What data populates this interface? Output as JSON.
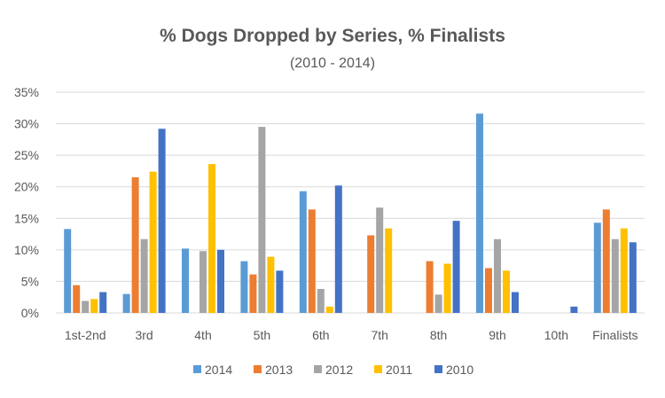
{
  "chart_data": {
    "type": "bar",
    "title": "% Dogs Dropped by Series, % Finalists",
    "subtitle": "(2010 - 2014)",
    "xlabel": "",
    "ylabel": "",
    "ylim": [
      0,
      35
    ],
    "yticks": [
      0,
      5,
      10,
      15,
      20,
      25,
      30,
      35
    ],
    "ytick_labels": [
      "0%",
      "5%",
      "10%",
      "15%",
      "20%",
      "25%",
      "30%",
      "35%"
    ],
    "grid": true,
    "legend_position": "bottom",
    "categories": [
      "1st-2nd",
      "3rd",
      "4th",
      "5th",
      "6th",
      "7th",
      "8th",
      "9th",
      "10th",
      "Finalists"
    ],
    "series": [
      {
        "name": "2014",
        "color": "#5B9BD5",
        "values": [
          13.3,
          3.0,
          10.2,
          8.2,
          19.3,
          0,
          0,
          31.6,
          0,
          14.3
        ]
      },
      {
        "name": "2013",
        "color": "#ED7D31",
        "values": [
          4.4,
          21.5,
          0,
          6.1,
          16.4,
          12.3,
          8.2,
          7.1,
          0,
          16.4
        ]
      },
      {
        "name": "2012",
        "color": "#A5A5A5",
        "values": [
          1.9,
          11.7,
          9.8,
          29.5,
          3.8,
          16.7,
          2.9,
          11.7,
          0,
          11.7
        ]
      },
      {
        "name": "2011",
        "color": "#FFC000",
        "values": [
          2.2,
          22.4,
          23.6,
          8.9,
          1.0,
          13.4,
          7.8,
          6.7,
          0,
          13.4
        ]
      },
      {
        "name": "2010",
        "color": "#4472C4",
        "values": [
          3.3,
          29.2,
          10.0,
          6.7,
          20.2,
          0,
          14.6,
          3.3,
          1.0,
          11.2
        ]
      }
    ]
  }
}
